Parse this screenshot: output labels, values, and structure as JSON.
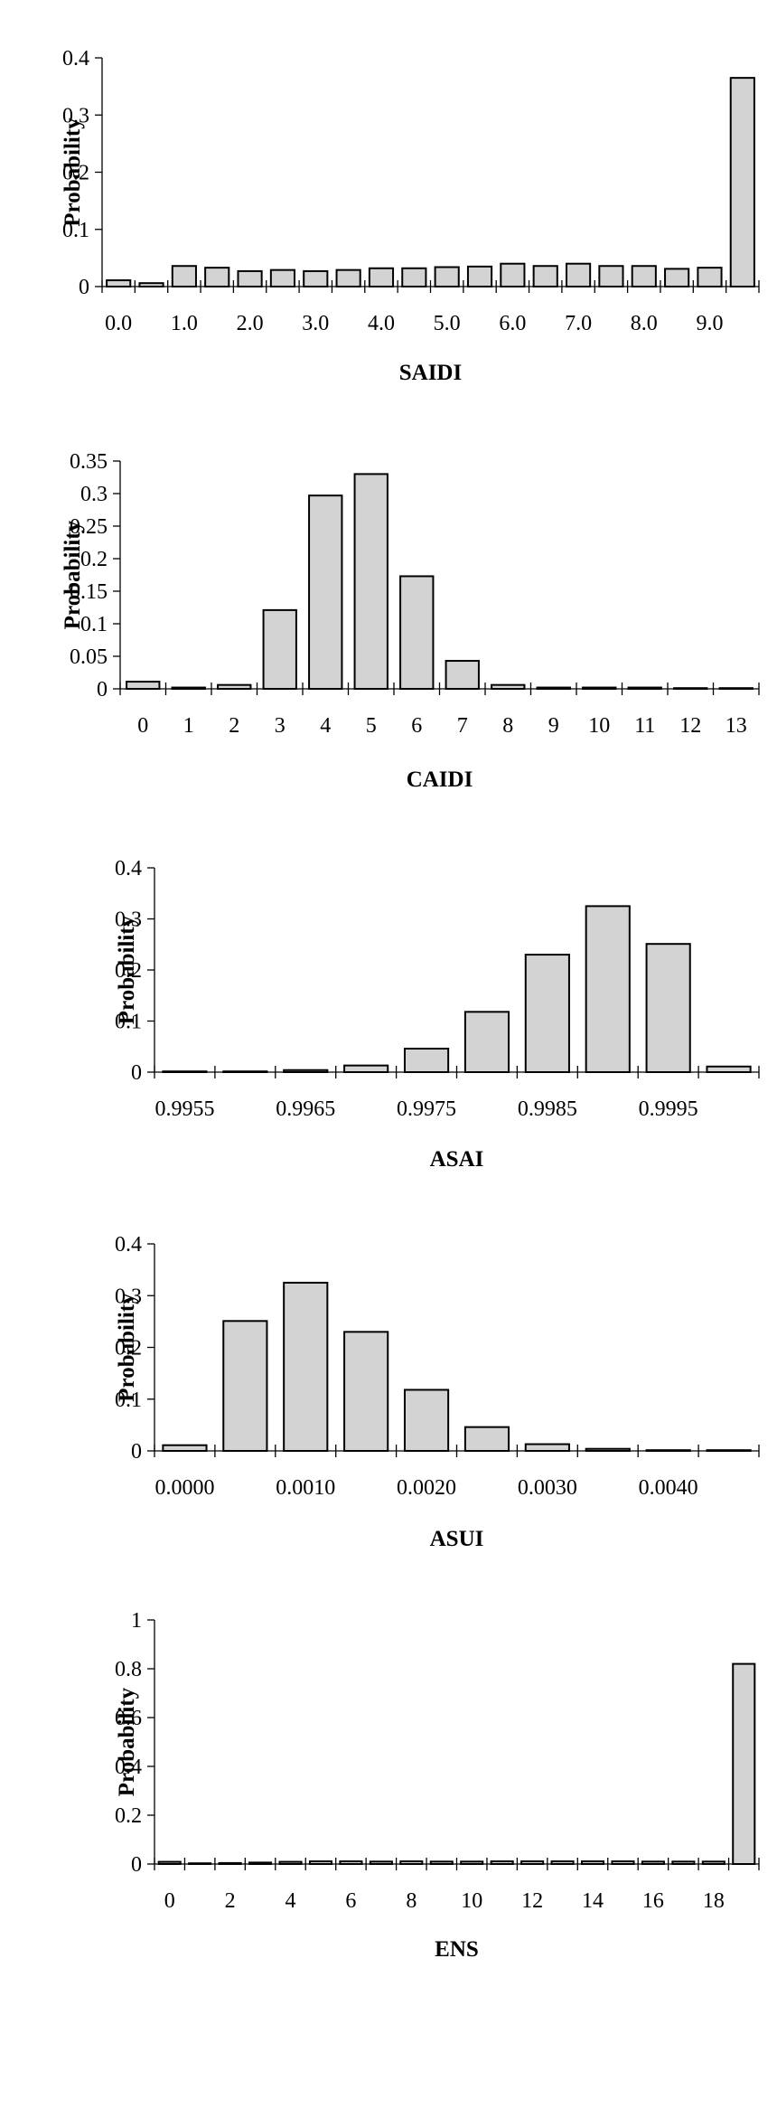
{
  "bar_fill": "#d3d3d3",
  "bar_stroke": "#000000",
  "chart_data": [
    {
      "type": "bar",
      "title": "",
      "xlabel": "SAIDI",
      "ylabel": "Probability",
      "ylim": [
        0,
        0.4
      ],
      "yticks": [
        {
          "value": 0,
          "label": "0"
        },
        {
          "value": 0.1,
          "label": "0.1"
        },
        {
          "value": 0.2,
          "label": "0.2"
        },
        {
          "value": 0.3,
          "label": "0.3"
        },
        {
          "value": 0.4,
          "label": "0.4"
        }
      ],
      "values": [
        0.011,
        0.006,
        0.036,
        0.033,
        0.027,
        0.029,
        0.027,
        0.029,
        0.032,
        0.032,
        0.034,
        0.035,
        0.04,
        0.036,
        0.04,
        0.036,
        0.036,
        0.031,
        0.033,
        0.365
      ],
      "xticks": [
        {
          "index": 0,
          "label": "0.0"
        },
        {
          "index": 2,
          "label": "1.0"
        },
        {
          "index": 4,
          "label": "2.0"
        },
        {
          "index": 6,
          "label": "3.0"
        },
        {
          "index": 8,
          "label": "4.0"
        },
        {
          "index": 10,
          "label": "5.0"
        },
        {
          "index": 12,
          "label": "6.0"
        },
        {
          "index": 14,
          "label": "7.0"
        },
        {
          "index": 16,
          "label": "8.0"
        },
        {
          "index": 18,
          "label": "9.0"
        }
      ]
    },
    {
      "type": "bar",
      "title": "",
      "xlabel": "CAIDI",
      "ylabel": "Probability",
      "ylim": [
        0,
        0.35
      ],
      "yticks": [
        {
          "value": 0,
          "label": "0"
        },
        {
          "value": 0.05,
          "label": "0.05"
        },
        {
          "value": 0.1,
          "label": "0.1"
        },
        {
          "value": 0.15,
          "label": "0.15"
        },
        {
          "value": 0.2,
          "label": "0.2"
        },
        {
          "value": 0.25,
          "label": "0.25"
        },
        {
          "value": 0.3,
          "label": "0.3"
        },
        {
          "value": 0.35,
          "label": "0.35"
        }
      ],
      "values": [
        0.011,
        0.002,
        0.006,
        0.121,
        0.297,
        0.33,
        0.173,
        0.043,
        0.006,
        0.002,
        0.002,
        0.002,
        0.001,
        0.0
      ],
      "xticks": [
        {
          "index": 0,
          "label": "0"
        },
        {
          "index": 1,
          "label": "1"
        },
        {
          "index": 2,
          "label": "2"
        },
        {
          "index": 3,
          "label": "3"
        },
        {
          "index": 4,
          "label": "4"
        },
        {
          "index": 5,
          "label": "5"
        },
        {
          "index": 6,
          "label": "6"
        },
        {
          "index": 7,
          "label": "7"
        },
        {
          "index": 8,
          "label": "8"
        },
        {
          "index": 9,
          "label": "9"
        },
        {
          "index": 10,
          "label": "10"
        },
        {
          "index": 11,
          "label": "11"
        },
        {
          "index": 12,
          "label": "12"
        },
        {
          "index": 13,
          "label": "13"
        }
      ]
    },
    {
      "type": "bar",
      "title": "",
      "xlabel": "ASAI",
      "ylabel": "Probability",
      "ylim": [
        0,
        0.4
      ],
      "yticks": [
        {
          "value": 0,
          "label": "0"
        },
        {
          "value": 0.1,
          "label": "0.1"
        },
        {
          "value": 0.2,
          "label": "0.2"
        },
        {
          "value": 0.3,
          "label": "0.3"
        },
        {
          "value": 0.4,
          "label": "0.4"
        }
      ],
      "values": [
        0.001,
        0.001,
        0.004,
        0.013,
        0.046,
        0.118,
        0.23,
        0.325,
        0.251,
        0.011
      ],
      "xticks": [
        {
          "index": 0,
          "label": "0.9955"
        },
        {
          "index": 2,
          "label": "0.9965"
        },
        {
          "index": 4,
          "label": "0.9975"
        },
        {
          "index": 6,
          "label": "0.9985"
        },
        {
          "index": 8,
          "label": "0.9995"
        }
      ]
    },
    {
      "type": "bar",
      "title": "",
      "xlabel": "ASUI",
      "ylabel": "Probability",
      "ylim": [
        0,
        0.4
      ],
      "yticks": [
        {
          "value": 0,
          "label": "0"
        },
        {
          "value": 0.1,
          "label": "0.1"
        },
        {
          "value": 0.2,
          "label": "0.2"
        },
        {
          "value": 0.3,
          "label": "0.3"
        },
        {
          "value": 0.4,
          "label": "0.4"
        }
      ],
      "values": [
        0.011,
        0.251,
        0.325,
        0.23,
        0.118,
        0.046,
        0.013,
        0.004,
        0.001,
        0.001
      ],
      "xticks": [
        {
          "index": 0,
          "label": "0.0000"
        },
        {
          "index": 2,
          "label": "0.0010"
        },
        {
          "index": 4,
          "label": "0.0020"
        },
        {
          "index": 6,
          "label": "0.0030"
        },
        {
          "index": 8,
          "label": "0.0040"
        }
      ]
    },
    {
      "type": "bar",
      "title": "",
      "xlabel": "ENS",
      "ylabel": "Probability",
      "ylim": [
        0,
        1
      ],
      "yticks": [
        {
          "value": 0,
          "label": "0"
        },
        {
          "value": 0.2,
          "label": "0.2"
        },
        {
          "value": 0.4,
          "label": "0.4"
        },
        {
          "value": 0.6,
          "label": "0.6"
        },
        {
          "value": 0.8,
          "label": "0.8"
        },
        {
          "value": 1,
          "label": "1"
        }
      ],
      "values": [
        0.009,
        0.003,
        0.004,
        0.006,
        0.009,
        0.011,
        0.011,
        0.01,
        0.011,
        0.01,
        0.01,
        0.011,
        0.011,
        0.011,
        0.011,
        0.011,
        0.01,
        0.01,
        0.01,
        0.82
      ],
      "xticks": [
        {
          "index": 0,
          "label": "0"
        },
        {
          "index": 2,
          "label": "2"
        },
        {
          "index": 4,
          "label": "4"
        },
        {
          "index": 6,
          "label": "6"
        },
        {
          "index": 8,
          "label": "8"
        },
        {
          "index": 10,
          "label": "10"
        },
        {
          "index": 12,
          "label": "12"
        },
        {
          "index": 14,
          "label": "14"
        },
        {
          "index": 16,
          "label": "16"
        },
        {
          "index": 18,
          "label": "18"
        }
      ]
    }
  ]
}
